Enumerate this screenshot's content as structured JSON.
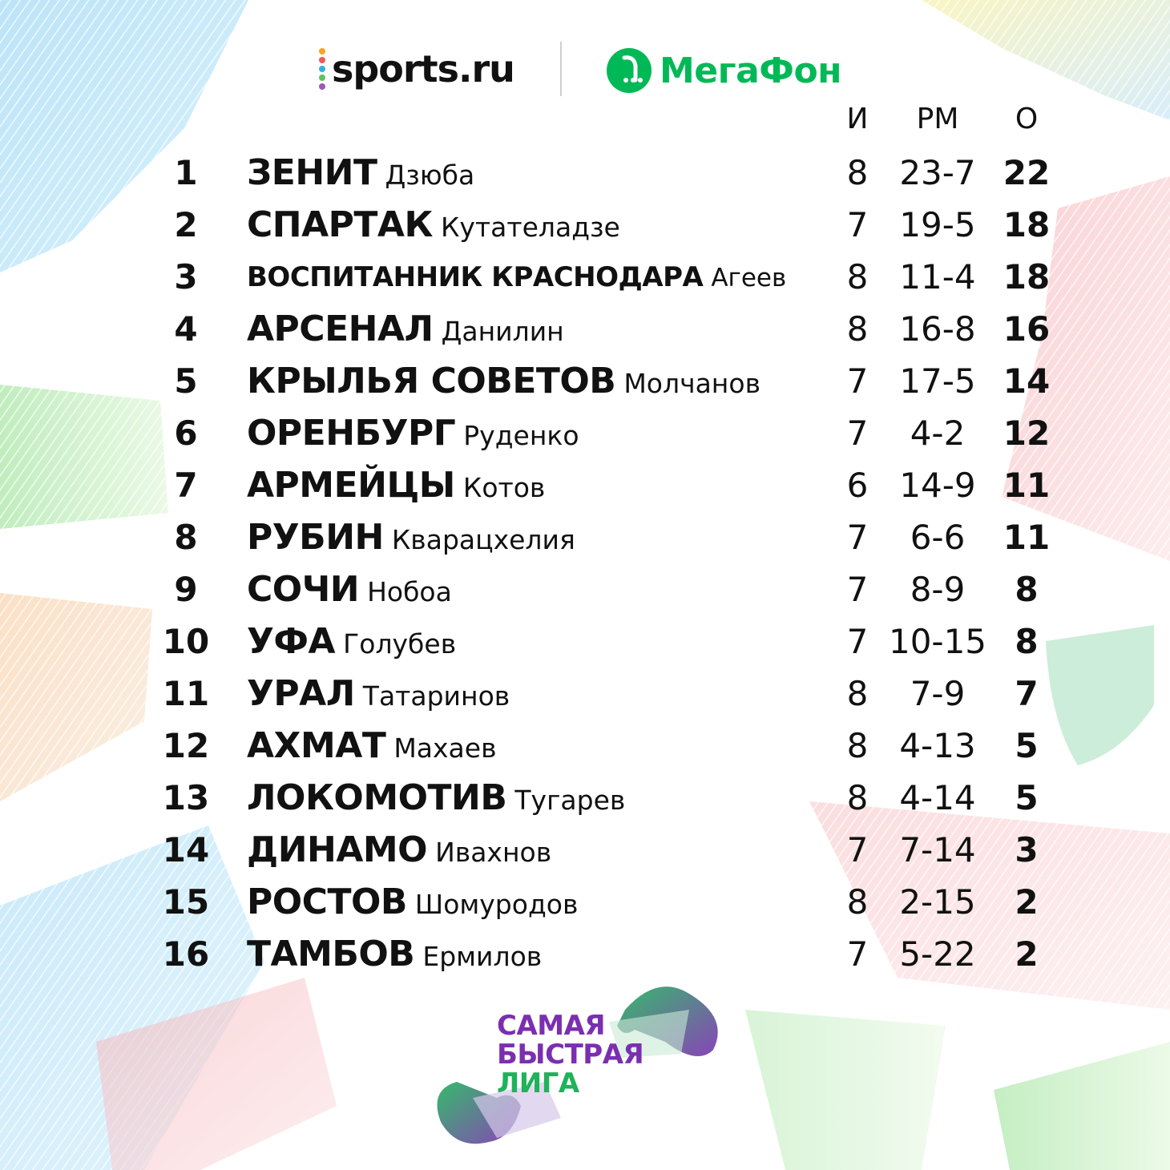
{
  "header": {
    "sports_logo_text": "sports.ru",
    "megafon_logo_text": "МегаФон"
  },
  "columns": {
    "games": "И",
    "goals": "РМ",
    "points": "О"
  },
  "rows": [
    {
      "pos": "1",
      "club": "ЗЕНИТ",
      "coach": "Дзюба",
      "games": "8",
      "goals": "23-7",
      "points": "22"
    },
    {
      "pos": "2",
      "club": "СПАРТАК",
      "coach": "Кутателадзе",
      "games": "7",
      "goals": "19-5",
      "points": "18"
    },
    {
      "pos": "3",
      "club": "ВОСПИТАННИК КРАСНОДАРА",
      "coach": "Агеев",
      "games": "8",
      "goals": "11-4",
      "points": "18"
    },
    {
      "pos": "4",
      "club": "АРСЕНАЛ",
      "coach": "Данилин",
      "games": "8",
      "goals": "16-8",
      "points": "16"
    },
    {
      "pos": "5",
      "club": "КРЫЛЬЯ СОВЕТОВ",
      "coach": "Молчанов",
      "games": "7",
      "goals": "17-5",
      "points": "14"
    },
    {
      "pos": "6",
      "club": "ОРЕНБУРГ",
      "coach": "Руденко",
      "games": "7",
      "goals": "4-2",
      "points": "12"
    },
    {
      "pos": "7",
      "club": "АРМЕЙЦЫ",
      "coach": "Котов",
      "games": "6",
      "goals": "14-9",
      "points": "11"
    },
    {
      "pos": "8",
      "club": "РУБИН",
      "coach": "Кварацхелия",
      "games": "7",
      "goals": "6-6",
      "points": "11"
    },
    {
      "pos": "9",
      "club": "СОЧИ",
      "coach": "Нобоа",
      "games": "7",
      "goals": "8-9",
      "points": "8"
    },
    {
      "pos": "10",
      "club": "УФА",
      "coach": "Голубев",
      "games": "7",
      "goals": "10-15",
      "points": "8"
    },
    {
      "pos": "11",
      "club": "УРАЛ",
      "coach": "Татаринов",
      "games": "8",
      "goals": "7-9",
      "points": "7"
    },
    {
      "pos": "12",
      "club": "АХМАТ",
      "coach": "Махаев",
      "games": "8",
      "goals": "4-13",
      "points": "5"
    },
    {
      "pos": "13",
      "club": "ЛОКОМОТИВ",
      "coach": "Тугарев",
      "games": "8",
      "goals": "4-14",
      "points": "5"
    },
    {
      "pos": "14",
      "club": "ДИНАМО",
      "coach": "Ивахнов",
      "games": "7",
      "goals": "7-14",
      "points": "3"
    },
    {
      "pos": "15",
      "club": "РОСТОВ",
      "coach": "Шомуродов",
      "games": "8",
      "goals": "2-15",
      "points": "2"
    },
    {
      "pos": "16",
      "club": "ТАМБОВ",
      "coach": "Ермилов",
      "games": "7",
      "goals": "5-22",
      "points": "2"
    }
  ],
  "league_logo": {
    "line1": "САМАЯ",
    "line2": "БЫСТРАЯ",
    "line3": "ЛИГА"
  },
  "colors": {
    "megafon_green": "#00b956",
    "league_purple": "#7b2fb0",
    "league_green": "#1fb25a"
  }
}
